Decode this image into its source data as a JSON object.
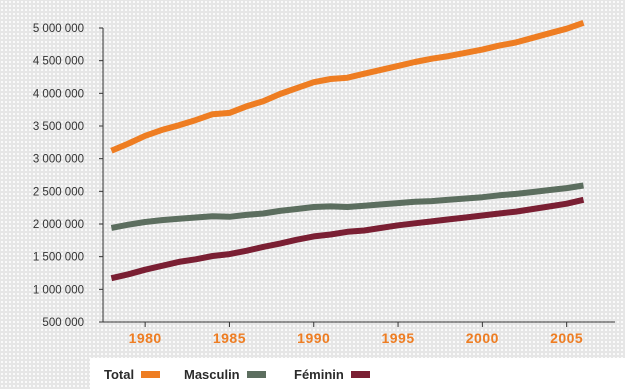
{
  "chart_data": {
    "type": "line",
    "title": "",
    "xlabel": "",
    "ylabel": "",
    "xlim": [
      1977.5,
      2006.8
    ],
    "ylim": [
      500000,
      5000000
    ],
    "x_ticks": [
      1980,
      1985,
      1990,
      1995,
      2000,
      2005
    ],
    "y_ticks": [
      {
        "value": 500000,
        "label": "500 000"
      },
      {
        "value": 1000000,
        "label": "1 000 000"
      },
      {
        "value": 1500000,
        "label": "1 500 000"
      },
      {
        "value": 2000000,
        "label": "2 000 000"
      },
      {
        "value": 2500000,
        "label": "2 500 000"
      },
      {
        "value": 3000000,
        "label": "3 000 000"
      },
      {
        "value": 3500000,
        "label": "3 500 000"
      },
      {
        "value": 4000000,
        "label": "4 000 000"
      },
      {
        "value": 4500000,
        "label": "4 500 000"
      },
      {
        "value": 5000000,
        "label": "5 000 000"
      }
    ],
    "x": [
      1978,
      1979,
      1980,
      1981,
      1982,
      1983,
      1984,
      1985,
      1986,
      1987,
      1988,
      1989,
      1990,
      1991,
      1992,
      1993,
      1994,
      1995,
      1996,
      1997,
      1998,
      1999,
      2000,
      2001,
      2002,
      2003,
      2004,
      2005,
      2006
    ],
    "series": [
      {
        "name": "Total",
        "color": "#ee7d22",
        "values": [
          3120000,
          3230000,
          3350000,
          3440000,
          3510000,
          3590000,
          3680000,
          3700000,
          3800000,
          3880000,
          3990000,
          4080000,
          4170000,
          4220000,
          4240000,
          4300000,
          4360000,
          4420000,
          4480000,
          4530000,
          4570000,
          4620000,
          4670000,
          4730000,
          4780000,
          4850000,
          4920000,
          4990000,
          5080000
        ]
      },
      {
        "name": "Masculin",
        "color": "#5c6e5f",
        "values": [
          1940000,
          1990000,
          2030000,
          2060000,
          2080000,
          2100000,
          2120000,
          2110000,
          2140000,
          2160000,
          2200000,
          2230000,
          2260000,
          2270000,
          2260000,
          2280000,
          2300000,
          2320000,
          2340000,
          2350000,
          2370000,
          2390000,
          2410000,
          2440000,
          2460000,
          2490000,
          2520000,
          2550000,
          2590000
        ]
      },
      {
        "name": "Féminin",
        "color": "#7a1f33",
        "values": [
          1170000,
          1230000,
          1300000,
          1360000,
          1420000,
          1460000,
          1510000,
          1540000,
          1590000,
          1650000,
          1700000,
          1760000,
          1810000,
          1840000,
          1880000,
          1900000,
          1940000,
          1980000,
          2010000,
          2040000,
          2070000,
          2100000,
          2130000,
          2160000,
          2190000,
          2230000,
          2270000,
          2310000,
          2370000
        ]
      }
    ],
    "x_tick_color": "#ee7d22",
    "axis_color": "#333333",
    "grid": false,
    "legend_position": "bottom-left"
  },
  "legend": [
    {
      "label": "Total",
      "color": "#ee7d22"
    },
    {
      "label": "Masculin",
      "color": "#5c6e5f"
    },
    {
      "label": "Féminin",
      "color": "#7a1f33"
    }
  ]
}
